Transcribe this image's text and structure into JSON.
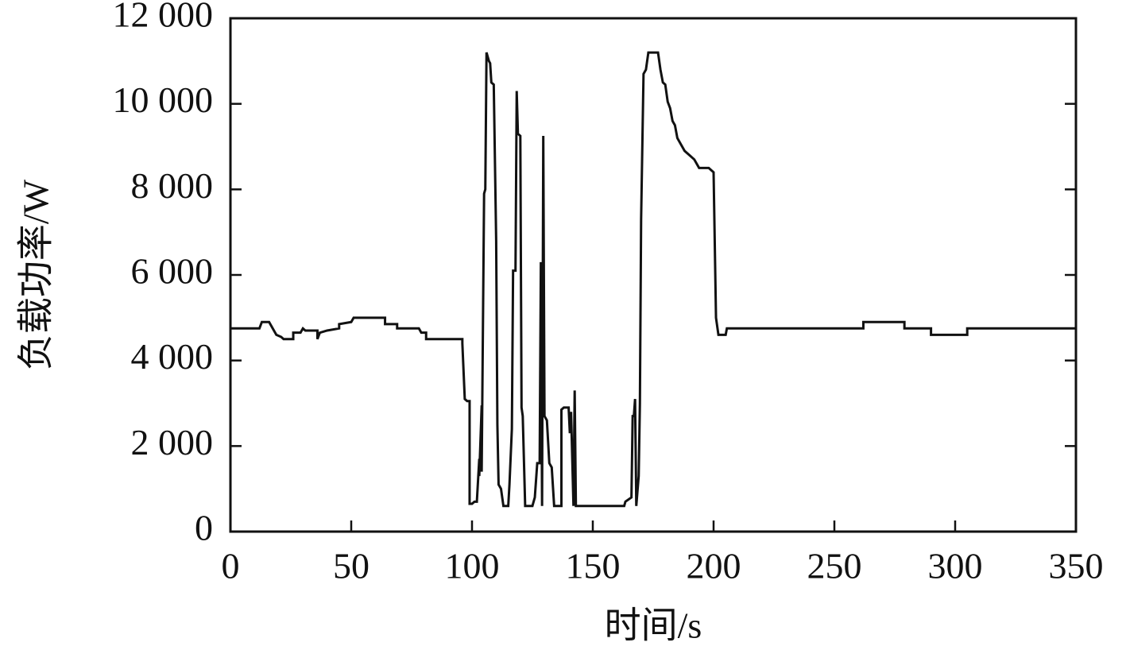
{
  "chart_data": {
    "type": "line",
    "xlabel": "时间/s",
    "ylabel": "负载功率/W",
    "xlim": [
      0,
      350
    ],
    "xticks": [
      0,
      50,
      100,
      150,
      200,
      250,
      300,
      350
    ],
    "ylim": [
      0,
      12000
    ],
    "yticks": [
      0,
      {
        "value": 2000,
        "label": "2 000"
      },
      {
        "value": 4000,
        "label": "4 000"
      },
      {
        "value": 6000,
        "label": "6 000"
      },
      {
        "value": 8000,
        "label": "8 000"
      },
      {
        "value": 10000,
        "label": "10 000"
      },
      {
        "value": 12000,
        "label": "12 000"
      }
    ],
    "series": [
      {
        "color": "#111111",
        "x": [
          0,
          12,
          13,
          16,
          17,
          18,
          19,
          21,
          22,
          26,
          26,
          29,
          30,
          31,
          36,
          36,
          37,
          40,
          45,
          45,
          50,
          51,
          64,
          64,
          69,
          69,
          78,
          79,
          81,
          81,
          96,
          96,
          97,
          98,
          99,
          99,
          100,
          101,
          102,
          103,
          103,
          104,
          104,
          105,
          105.5,
          106,
          107,
          107.5,
          108,
          109,
          110,
          110.5,
          111,
          112,
          113,
          115,
          115.5,
          116.5,
          117,
          118,
          118.5,
          119,
          120,
          120.5,
          121,
          122,
          125,
          126,
          127,
          128,
          128.5,
          129,
          129.5,
          130,
          131,
          132,
          133,
          134,
          137,
          137,
          138,
          140,
          140.5,
          141,
          142,
          142.5,
          143,
          160,
          163,
          163.5,
          166,
          166.5,
          167,
          167.5,
          168,
          169,
          169.5,
          170,
          171,
          172,
          173,
          177,
          178,
          179,
          180,
          181,
          182,
          183,
          184,
          185,
          186,
          187,
          188,
          190,
          192,
          193,
          194,
          198,
          199,
          200,
          201,
          202,
          205,
          205.5,
          262,
          262,
          279,
          279,
          290,
          290,
          305,
          305,
          350
        ],
        "values": [
          4750,
          4750,
          4900,
          4900,
          4800,
          4700,
          4600,
          4550,
          4500,
          4500,
          4650,
          4650,
          4750,
          4700,
          4700,
          4500,
          4650,
          4700,
          4750,
          4850,
          4900,
          5000,
          5000,
          4850,
          4850,
          4750,
          4750,
          4650,
          4650,
          4500,
          4500,
          4400,
          3100,
          3050,
          3050,
          650,
          650,
          700,
          700,
          1700,
          1300,
          2950,
          1400,
          7900,
          8000,
          11200,
          11000,
          10950,
          10500,
          10450,
          6800,
          2500,
          1100,
          1000,
          600,
          600,
          1100,
          2400,
          6100,
          6100,
          10300,
          9300,
          9250,
          2900,
          2700,
          600,
          600,
          800,
          1600,
          1600,
          6300,
          600,
          9250,
          2700,
          2600,
          1600,
          1500,
          600,
          600,
          2850,
          2900,
          2900,
          2300,
          2800,
          600,
          3300,
          600,
          600,
          600,
          700,
          800,
          2700,
          2700,
          3100,
          600,
          1300,
          3000,
          7300,
          10700,
          10800,
          11200,
          11200,
          10800,
          10500,
          10450,
          10050,
          9900,
          9600,
          9500,
          9200,
          9100,
          9000,
          8900,
          8800,
          8700,
          8600,
          8500,
          8500,
          8450,
          8400,
          5000,
          4600,
          4600,
          4750,
          4750,
          4900,
          4900,
          4750,
          4750,
          4600,
          4600,
          4750,
          4750
        ]
      }
    ]
  }
}
